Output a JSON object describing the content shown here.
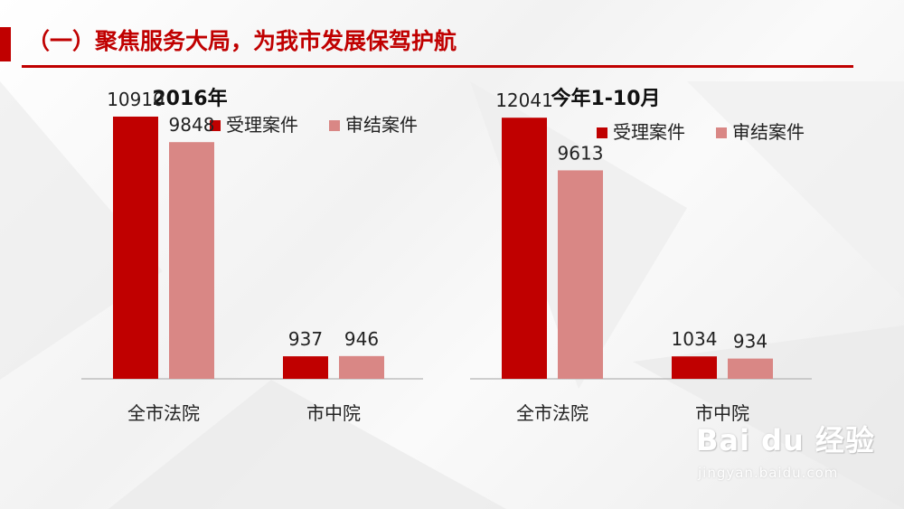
{
  "header": {
    "title": "（一）聚焦服务大局，为我市发展保驾护航"
  },
  "colors": {
    "accent": "#c00000",
    "series_1": "#c00000",
    "series_2": "#d98785"
  },
  "chart_data": [
    {
      "type": "bar",
      "title": "2016年",
      "categories": [
        "全市法院",
        "市中院"
      ],
      "series": [
        {
          "name": "受理案件",
          "values": [
            10910,
            937
          ]
        },
        {
          "name": "审结案件",
          "values": [
            9848,
            946
          ]
        }
      ],
      "ylim": [
        0,
        12000
      ],
      "grid": false,
      "legend": "top"
    },
    {
      "type": "bar",
      "title": "今年1-10月",
      "categories": [
        "全市法院",
        "市中院"
      ],
      "series": [
        {
          "name": "受理案件",
          "values": [
            12041,
            1034
          ]
        },
        {
          "name": "审结案件",
          "values": [
            9613,
            934
          ]
        }
      ],
      "ylim": [
        0,
        13300
      ],
      "grid": false,
      "legend": "top-right"
    }
  ],
  "watermark": {
    "brand": "Bai du 经验",
    "url": "jingyan.baidu.com"
  }
}
